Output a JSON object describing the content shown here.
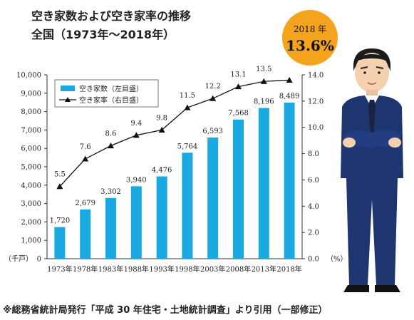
{
  "title": {
    "line1": "空き家数および空き家率の推移",
    "line2": "全国（1973年〜2018年）"
  },
  "callout": {
    "year": "2018 年",
    "rate": "13.6%"
  },
  "footnote": "※総務省統計局発行「平成 30 年住宅・土地統計調査」より引用（一部修正）",
  "colors": {
    "bar": "#1ba9e1",
    "callout": "#f4a31c",
    "line": "#111111"
  },
  "icons": [
    "businessman-illustration"
  ],
  "chart_data": {
    "type": "bar",
    "categories": [
      "1973年",
      "1978年",
      "1983年",
      "1988年",
      "1993年",
      "1998年",
      "2003年",
      "2008年",
      "2013年",
      "2018年"
    ],
    "series": [
      {
        "name": "空き家数（左目盛）",
        "type": "bar",
        "axis": "left",
        "values": [
          1720,
          2679,
          3302,
          3940,
          4476,
          5764,
          6593,
          7568,
          8196,
          8489
        ],
        "labels": [
          "1,720",
          "2,679",
          "3,302",
          "3,940",
          "4,476",
          "5,764",
          "6,593",
          "7,568",
          "8,196",
          "8,489"
        ]
      },
      {
        "name": "空き家率（右目盛）",
        "type": "line",
        "axis": "right",
        "values": [
          5.5,
          7.6,
          8.6,
          9.4,
          9.8,
          11.5,
          12.2,
          13.1,
          13.5,
          13.6
        ],
        "labels": [
          "5.5",
          "7.6",
          "8.6",
          "9.4",
          "9.8",
          "11.5",
          "12.2",
          "13.1",
          "13.5",
          ""
        ]
      }
    ],
    "y_left": {
      "unit": "（千戸）",
      "ylim": [
        0,
        10000
      ],
      "ticks": [
        "0",
        "1,000",
        "2,000",
        "3,000",
        "4,000",
        "5,000",
        "6,000",
        "7,000",
        "8,000",
        "9,000",
        "10,000"
      ]
    },
    "y_right": {
      "unit": "（%）",
      "ylim": [
        0,
        14
      ],
      "ticks": [
        "0.0",
        "2.0",
        "4.0",
        "6.0",
        "8.0",
        "10.0",
        "12.0",
        "14.0"
      ]
    },
    "grid": false,
    "legend": "top-left"
  }
}
